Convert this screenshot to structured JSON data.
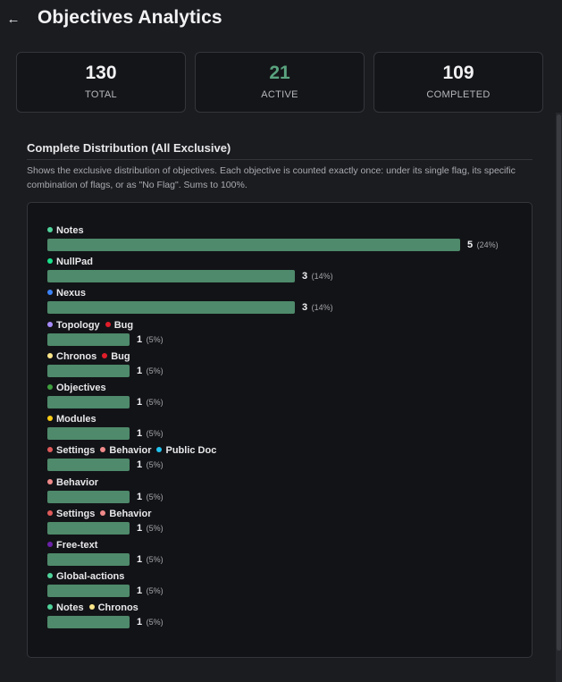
{
  "header": {
    "title": "Objectives Analytics",
    "back_icon": "←"
  },
  "stats": [
    {
      "value": "130",
      "label": "TOTAL"
    },
    {
      "value": "21",
      "label": "ACTIVE"
    },
    {
      "value": "109",
      "label": "COMPLETED"
    }
  ],
  "section": {
    "title": "Complete Distribution (All Exclusive)",
    "description": "Shows the exclusive distribution of objectives. Each objective is counted exactly once: under its single flag, its specific combination of flags, or as \"No Flag\". Sums to 100%."
  },
  "colors": {
    "bar": "#4e8a6b",
    "active": "#5aa37f"
  },
  "chart_data": {
    "type": "bar",
    "categories": [
      "Notes",
      "NullPad",
      "Nexus",
      "Topology + Bug",
      "Chronos + Bug",
      "Objectives",
      "Modules",
      "Settings + Behavior + Public Doc",
      "Behavior",
      "Settings + Behavior",
      "Free-text",
      "Global-actions",
      "Notes + Chronos"
    ],
    "values": [
      5,
      3,
      3,
      1,
      1,
      1,
      1,
      1,
      1,
      1,
      1,
      1,
      1
    ],
    "percents": [
      "24%",
      "14%",
      "14%",
      "5%",
      "5%",
      "5%",
      "5%",
      "5%",
      "5%",
      "5%",
      "5%",
      "5%",
      "5%"
    ],
    "rows": [
      {
        "tags": [
          {
            "label": "Notes",
            "color": "#4fd39a"
          }
        ],
        "value": 5,
        "pct": "(24%)"
      },
      {
        "tags": [
          {
            "label": "NullPad",
            "color": "#19e08a"
          }
        ],
        "value": 3,
        "pct": "(14%)"
      },
      {
        "tags": [
          {
            "label": "Nexus",
            "color": "#3b82f6"
          }
        ],
        "value": 3,
        "pct": "(14%)"
      },
      {
        "tags": [
          {
            "label": "Topology",
            "color": "#a78bfa"
          },
          {
            "label": "Bug",
            "color": "#e11d2a"
          }
        ],
        "value": 1,
        "pct": "(5%)"
      },
      {
        "tags": [
          {
            "label": "Chronos",
            "color": "#fde68a"
          },
          {
            "label": "Bug",
            "color": "#e11d2a"
          }
        ],
        "value": 1,
        "pct": "(5%)"
      },
      {
        "tags": [
          {
            "label": "Objectives",
            "color": "#3f9e3f"
          }
        ],
        "value": 1,
        "pct": "(5%)"
      },
      {
        "tags": [
          {
            "label": "Modules",
            "color": "#facc15"
          }
        ],
        "value": 1,
        "pct": "(5%)"
      },
      {
        "tags": [
          {
            "label": "Settings",
            "color": "#e05a5a"
          },
          {
            "label": "Behavior",
            "color": "#f08a8a"
          },
          {
            "label": "Public Doc",
            "color": "#22c3ee"
          }
        ],
        "value": 1,
        "pct": "(5%)"
      },
      {
        "tags": [
          {
            "label": "Behavior",
            "color": "#f08a8a"
          }
        ],
        "value": 1,
        "pct": "(5%)"
      },
      {
        "tags": [
          {
            "label": "Settings",
            "color": "#e05a5a"
          },
          {
            "label": "Behavior",
            "color": "#f08a8a"
          }
        ],
        "value": 1,
        "pct": "(5%)"
      },
      {
        "tags": [
          {
            "label": "Free-text",
            "color": "#6b21a8"
          }
        ],
        "value": 1,
        "pct": "(5%)"
      },
      {
        "tags": [
          {
            "label": "Global-actions",
            "color": "#4fd39a"
          }
        ],
        "value": 1,
        "pct": "(5%)"
      },
      {
        "tags": [
          {
            "label": "Notes",
            "color": "#4fd39a"
          },
          {
            "label": "Chronos",
            "color": "#fde68a"
          }
        ],
        "value": 1,
        "pct": "(5%)"
      }
    ]
  }
}
